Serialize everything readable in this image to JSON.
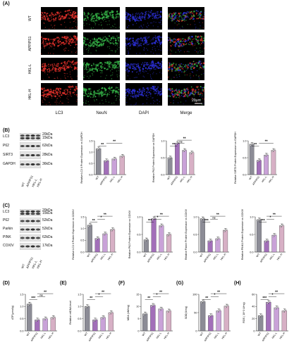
{
  "panelA": {
    "letter": "(A)",
    "rows": [
      "WT",
      "APP/PS1",
      "HKL-L",
      "HKL-H"
    ],
    "columns": [
      "LC3",
      "NeuN",
      "DAPI",
      "Merge"
    ],
    "scale": "20μm"
  },
  "panelB": {
    "letter": "(B)",
    "proteins": [
      {
        "name": "LC3",
        "kd": [
          "20kDa",
          "15kDa"
        ]
      },
      {
        "name": "P62",
        "kd": [
          "62kDa"
        ]
      },
      {
        "name": "SIRT3",
        "kd": [
          "28kDa"
        ]
      },
      {
        "name": "GAPDH",
        "kd": [
          "36kDa"
        ]
      }
    ],
    "lanes": [
      "WT",
      "APP/PS1",
      "HKL-L",
      "HKL-H"
    ]
  },
  "panelC": {
    "letter": "(C)",
    "proteins": [
      {
        "name": "LC3",
        "kd": [
          "20kDa",
          "15kDa"
        ]
      },
      {
        "name": "P62",
        "kd": [
          "52kDa"
        ]
      },
      {
        "name": "Parkin",
        "kd": [
          "52kDa"
        ]
      },
      {
        "name": "PINK",
        "kd": [
          "62kDa"
        ]
      },
      {
        "name": "COXIV",
        "kd": [
          "17kDa"
        ]
      }
    ],
    "lanes": [
      "WT",
      "APP/PS1",
      "HKL-L",
      "HKL-H"
    ]
  },
  "panelD": {
    "letter": "(D)"
  },
  "panelE": {
    "letter": "(E)"
  },
  "panelF": {
    "letter": "(F)"
  },
  "panelG": {
    "letter": "(G)"
  },
  "panelH": {
    "letter": "(H)"
  },
  "chart_data": [
    {
      "id": "B1",
      "type": "bar",
      "categories": [
        "WT",
        "APP/PS1",
        "HKL-L",
        "HKL-H"
      ],
      "values": [
        1.15,
        0.62,
        0.7,
        0.82
      ],
      "ylabel": "Relative LC3 II Protein Expression vs GAPDH",
      "ylim": [
        0,
        1.5
      ],
      "yticks": [
        "0.0",
        "0.5",
        "1.0",
        "1.5"
      ],
      "sig": [
        {
          "a": 0,
          "b": 1,
          "t": "**"
        },
        {
          "a": 1,
          "b": 3,
          "t": "**"
        }
      ]
    },
    {
      "id": "B2",
      "type": "bar",
      "categories": [
        "WT",
        "APP/PS1",
        "HKL-L",
        "HKL-H"
      ],
      "values": [
        0.5,
        0.93,
        0.72,
        0.65
      ],
      "ylabel": "Relative P62 Protein Expression vs GAPDH",
      "ylim": [
        0,
        1.0
      ],
      "yticks": [
        "0.0",
        "0.5",
        "1.0"
      ],
      "sig": [
        {
          "a": 0,
          "b": 1,
          "t": "**"
        },
        {
          "a": 1,
          "b": 2,
          "t": "ns"
        },
        {
          "a": 1,
          "b": 3,
          "t": "**"
        }
      ]
    },
    {
      "id": "B3",
      "type": "bar",
      "categories": [
        "WT",
        "APP/PS1",
        "HKL-L",
        "HKL-H"
      ],
      "values": [
        0.9,
        0.42,
        0.58,
        0.72
      ],
      "ylabel": "Relative SIRT3 Protein Expression vs GAPDH",
      "ylim": [
        0,
        1.0
      ],
      "yticks": [
        "0.0",
        "0.5",
        "1.0"
      ],
      "sig": [
        {
          "a": 0,
          "b": 1,
          "t": "**"
        },
        {
          "a": 1,
          "b": 3,
          "t": "**"
        }
      ]
    },
    {
      "id": "C1",
      "type": "bar",
      "categories": [
        "WT",
        "APP/PS1",
        "HKL-L",
        "HKL-H"
      ],
      "values": [
        1.15,
        0.58,
        0.78,
        0.96
      ],
      "ylabel": "Relative LC3 II Protein Expression vs COXIV",
      "ylim": [
        0,
        1.5
      ],
      "yticks": [
        "0.0",
        "0.5",
        "1.0",
        "1.5"
      ],
      "sig": [
        {
          "a": 0,
          "b": 1,
          "t": "**"
        },
        {
          "a": 1,
          "b": 2,
          "t": "*"
        },
        {
          "a": 1,
          "b": 3,
          "t": "**"
        }
      ]
    },
    {
      "id": "C2",
      "type": "bar",
      "categories": [
        "WT",
        "APP/PS1",
        "HKL-L",
        "HKL-H"
      ],
      "values": [
        0.35,
        0.95,
        0.75,
        0.5
      ],
      "ylabel": "Relative P62 Protein Expression vs COXIV",
      "ylim": [
        0,
        1.0
      ],
      "yticks": [
        "0.0",
        "0.5",
        "1.0"
      ],
      "sig": [
        {
          "a": 0,
          "b": 1,
          "t": "***"
        },
        {
          "a": 1,
          "b": 2,
          "t": "*"
        },
        {
          "a": 1,
          "b": 3,
          "t": "**"
        }
      ]
    },
    {
      "id": "C3",
      "type": "bar",
      "categories": [
        "WT",
        "APP/PS1",
        "HKL-L",
        "HKL-H"
      ],
      "values": [
        0.95,
        0.32,
        0.38,
        0.62
      ],
      "ylabel": "Relative Parkin Protein Expression vs COXIV",
      "ylim": [
        0,
        1.0
      ],
      "yticks": [
        "0.0",
        "0.5",
        "1.0"
      ],
      "sig": [
        {
          "a": 0,
          "b": 1,
          "t": "***"
        },
        {
          "a": 1,
          "b": 2,
          "t": "ns"
        },
        {
          "a": 1,
          "b": 3,
          "t": "**"
        }
      ]
    },
    {
      "id": "C4",
      "type": "bar",
      "categories": [
        "WT",
        "APP/PS1",
        "HKL-L",
        "HKL-H"
      ],
      "values": [
        0.92,
        0.32,
        0.48,
        0.75
      ],
      "ylabel": "Relative PINK1 Protein Expression vs COXIV",
      "ylim": [
        0,
        1.0
      ],
      "yticks": [
        "0.0",
        "0.5",
        "1.0"
      ],
      "sig": [
        {
          "a": 0,
          "b": 1,
          "t": "***"
        },
        {
          "a": 1,
          "b": 2,
          "t": "*"
        },
        {
          "a": 1,
          "b": 3,
          "t": "**"
        }
      ]
    },
    {
      "id": "D",
      "type": "bar",
      "categories": [
        "WT",
        "APP/PS1",
        "HKL-L",
        "HKL-H"
      ],
      "values": [
        1.1,
        0.45,
        0.5,
        0.55
      ],
      "ylabel": "ATP(μmol/g)",
      "ylim": [
        0,
        1.5
      ],
      "yticks": [
        "0.0",
        "0.5",
        "1.0",
        "1.5"
      ],
      "sig": [
        {
          "a": 0,
          "b": 1,
          "t": "***"
        },
        {
          "a": 1,
          "b": 2,
          "t": "ns"
        },
        {
          "a": 1,
          "b": 3,
          "t": "**"
        }
      ]
    },
    {
      "id": "E",
      "type": "bar",
      "categories": [
        "WT",
        "APP/PS1",
        "HKL-L",
        "HKL-H"
      ],
      "values": [
        1.0,
        0.45,
        0.55,
        0.75
      ],
      "ylabel": "Relative mtDNA level",
      "ylim": [
        0,
        1.5
      ],
      "yticks": [
        "0.0",
        "0.5",
        "1.0",
        "1.5"
      ],
      "sig": [
        {
          "a": 0,
          "b": 1,
          "t": "**"
        },
        {
          "a": 1,
          "b": 2,
          "t": "*"
        },
        {
          "a": 1,
          "b": 3,
          "t": "**"
        }
      ]
    },
    {
      "id": "F",
      "type": "bar",
      "categories": [
        "WT",
        "APP/PS1",
        "HKL-L",
        "HKL-H"
      ],
      "values": [
        7,
        10.5,
        9,
        8.2
      ],
      "ylabel": "MDA (nM/mg)",
      "ylim": [
        0,
        15
      ],
      "yticks": [
        "0",
        "5",
        "10",
        "15"
      ],
      "sig": [
        {
          "a": 0,
          "b": 1,
          "t": "**"
        },
        {
          "a": 1,
          "b": 2,
          "t": "*"
        },
        {
          "a": 1,
          "b": 3,
          "t": "**"
        }
      ]
    },
    {
      "id": "G",
      "type": "bar",
      "categories": [
        "WT",
        "APP/PS1",
        "HKL-L",
        "HKL-H"
      ],
      "values": [
        80,
        42,
        55,
        68
      ],
      "ylabel": "SOD(U/mg)",
      "ylim": [
        0,
        100
      ],
      "yticks": [
        "0",
        "50",
        "100"
      ],
      "sig": [
        {
          "a": 0,
          "b": 1,
          "t": "**"
        },
        {
          "a": 1,
          "b": 2,
          "t": "*"
        },
        {
          "a": 1,
          "b": 3,
          "t": "**"
        }
      ]
    },
    {
      "id": "H",
      "type": "bar",
      "categories": [
        "WT",
        "APP/PS1",
        "HKL-L",
        "HKL-H"
      ],
      "values": [
        25,
        47,
        38,
        33
      ],
      "ylabel": "ROS ( 10^3 U/mg)",
      "ylim": [
        0,
        60
      ],
      "yticks": [
        "0",
        "20",
        "40",
        "60"
      ],
      "sig": [
        {
          "a": 0,
          "b": 1,
          "t": "***"
        },
        {
          "a": 1,
          "b": 2,
          "t": "*"
        },
        {
          "a": 1,
          "b": 3,
          "t": "**"
        }
      ]
    }
  ],
  "colors": {
    "bar1": "#8c8c96",
    "bar2": "#a26fb9",
    "bar3": "#c9a2d8",
    "bar4": "#d7b0c5",
    "red": "#e0302a",
    "green": "#34b046",
    "blue": "#2b2fd4"
  }
}
